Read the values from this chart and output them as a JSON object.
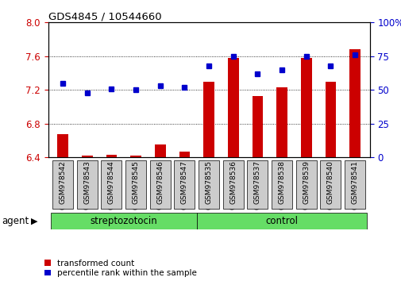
{
  "title": "GDS4845 / 10544660",
  "samples": [
    "GSM978542",
    "GSM978543",
    "GSM978544",
    "GSM978545",
    "GSM978546",
    "GSM978547",
    "GSM978535",
    "GSM978536",
    "GSM978537",
    "GSM978538",
    "GSM978539",
    "GSM978540",
    "GSM978541"
  ],
  "transformed_count": [
    6.68,
    6.42,
    6.43,
    6.42,
    6.55,
    6.47,
    7.3,
    7.58,
    7.13,
    7.23,
    7.58,
    7.3,
    7.68
  ],
  "percentile_rank": [
    55,
    48,
    51,
    50,
    53,
    52,
    68,
    75,
    62,
    65,
    75,
    68,
    76
  ],
  "groups": [
    "streptozotocin",
    "streptozotocin",
    "streptozotocin",
    "streptozotocin",
    "streptozotocin",
    "streptozotocin",
    "control",
    "control",
    "control",
    "control",
    "control",
    "control",
    "control"
  ],
  "ylim_left": [
    6.4,
    8.0
  ],
  "ylim_right": [
    0,
    100
  ],
  "yticks_left": [
    6.4,
    6.8,
    7.2,
    7.6,
    8.0
  ],
  "yticks_right": [
    0,
    25,
    50,
    75,
    100
  ],
  "bar_color": "#CC0000",
  "dot_color": "#0000CC",
  "green_color": "#66DD66",
  "legend_bar_label": "transformed count",
  "legend_dot_label": "percentile rank within the sample",
  "agent_label": "agent",
  "streptozotocin_label": "streptozotocin",
  "control_label": "control",
  "tick_label_color_left": "#CC0000",
  "tick_label_color_right": "#0000CC",
  "bar_width": 0.45,
  "base_value": 6.4,
  "n_strep": 6,
  "n_control": 7
}
